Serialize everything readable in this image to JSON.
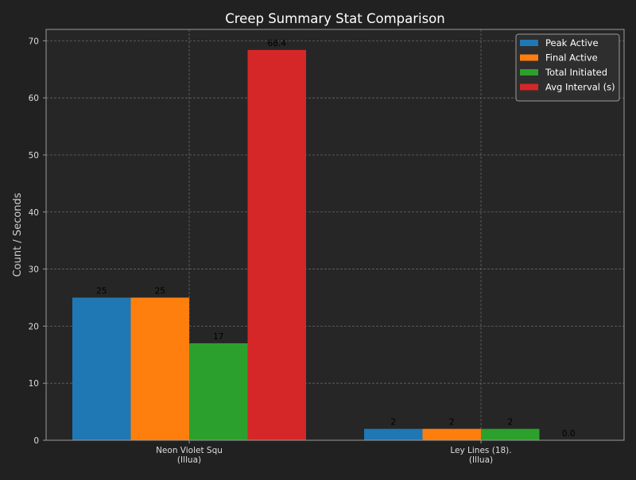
{
  "colors": {
    "background": "#212121",
    "plot_background": "#262626",
    "text": "#ffffff",
    "tick_text": "#dddddd",
    "axis": "#999999",
    "grid": "#666666",
    "data_label": "#000000"
  },
  "chart_data": {
    "type": "bar",
    "title": "Creep Summary Stat Comparison",
    "xlabel": "",
    "ylabel": "Count / Seconds",
    "categories": [
      [
        "Neon Violet Squ",
        "(Illua)"
      ],
      [
        "Ley Lines (18).",
        "(Illua)"
      ]
    ],
    "series": [
      {
        "name": "Peak Active",
        "color": "#1f77b4",
        "values": [
          25,
          2
        ],
        "labels": [
          "25",
          "2"
        ]
      },
      {
        "name": "Final Active",
        "color": "#ff7f0e",
        "values": [
          25,
          2
        ],
        "labels": [
          "25",
          "2"
        ]
      },
      {
        "name": "Total Initiated",
        "color": "#2ca02c",
        "values": [
          17,
          2
        ],
        "labels": [
          "17",
          "2"
        ]
      },
      {
        "name": "Avg Interval (s)",
        "color": "#d62728",
        "values": [
          68.4,
          0.0
        ],
        "labels": [
          "68.4",
          "0.0"
        ]
      }
    ],
    "ylim": [
      0,
      72
    ],
    "yticks": [
      0,
      10,
      20,
      30,
      40,
      50,
      60,
      70
    ],
    "grid": true,
    "legend_position": "top-right"
  }
}
